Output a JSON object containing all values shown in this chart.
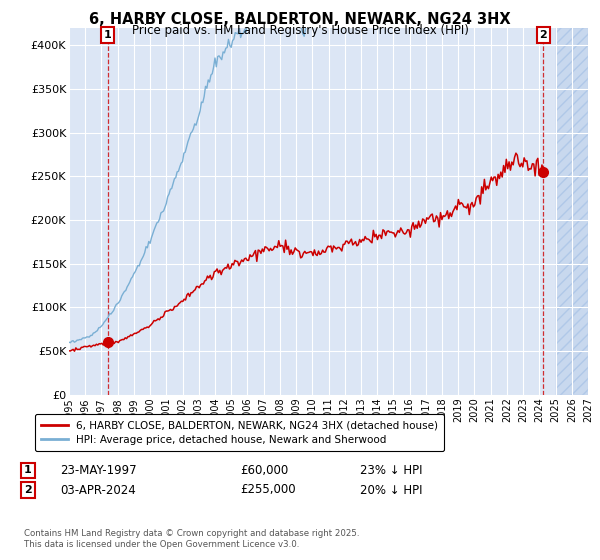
{
  "title_line1": "6, HARBY CLOSE, BALDERTON, NEWARK, NG24 3HX",
  "title_line2": "Price paid vs. HM Land Registry's House Price Index (HPI)",
  "background_color": "#ffffff",
  "plot_bg_color": "#dce6f5",
  "grid_color": "#ffffff",
  "hatch_bg_color": "#c8d8ee",
  "ylim": [
    0,
    420000
  ],
  "yticks": [
    0,
    50000,
    100000,
    150000,
    200000,
    250000,
    300000,
    350000,
    400000
  ],
  "ytick_labels": [
    "£0",
    "£50K",
    "£100K",
    "£150K",
    "£200K",
    "£250K",
    "£300K",
    "£350K",
    "£400K"
  ],
  "legend_label_red": "6, HARBY CLOSE, BALDERTON, NEWARK, NG24 3HX (detached house)",
  "legend_label_blue": "HPI: Average price, detached house, Newark and Sherwood",
  "annotation1_date": "23-MAY-1997",
  "annotation1_price": "£60,000",
  "annotation1_hpi": "23% ↓ HPI",
  "annotation2_date": "03-APR-2024",
  "annotation2_price": "£255,000",
  "annotation2_hpi": "20% ↓ HPI",
  "footer": "Contains HM Land Registry data © Crown copyright and database right 2025.\nThis data is licensed under the Open Government Licence v3.0.",
  "red_color": "#cc0000",
  "blue_color": "#7aafd4",
  "sale1_year": 1997.38,
  "sale1_price": 60000,
  "sale2_year": 2024.25,
  "sale2_price": 255000,
  "xmin": 1995,
  "xmax": 2027,
  "hatch_start": 2025.0
}
